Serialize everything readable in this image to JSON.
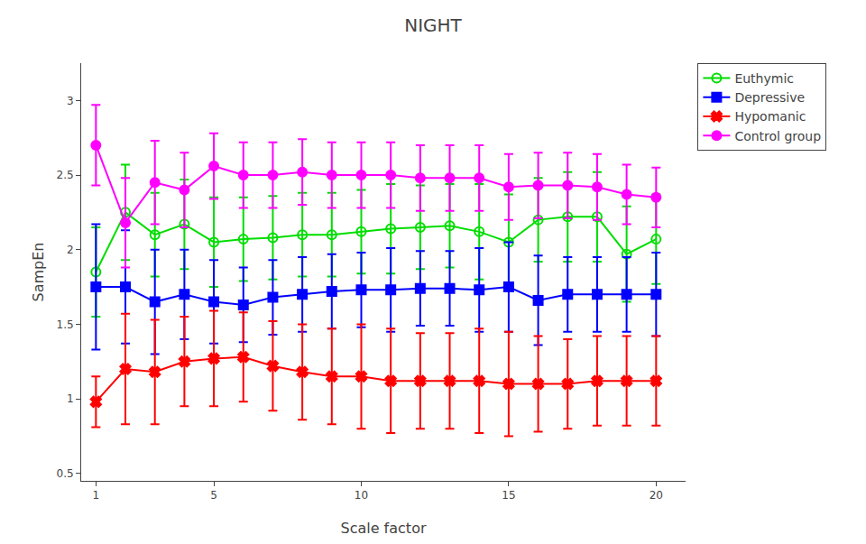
{
  "chart_data": {
    "type": "line",
    "title": "NIGHT",
    "xlabel": "Scale factor",
    "ylabel": "SampEn",
    "x": [
      1,
      2,
      3,
      4,
      5,
      6,
      7,
      8,
      9,
      10,
      11,
      12,
      13,
      14,
      15,
      16,
      17,
      18,
      19,
      20
    ],
    "xlim": [
      0.5,
      21
    ],
    "ylim": [
      0.45,
      3.25
    ],
    "xticks": [
      1,
      5,
      10,
      15,
      20
    ],
    "yticks": [
      0.5,
      1.0,
      1.5,
      2.0,
      2.5,
      3.0
    ],
    "grid": false,
    "legend": "upper right",
    "series": [
      {
        "name": "Euthymic",
        "color": "#00dd00",
        "marker": "circle-open",
        "values": [
          1.85,
          2.25,
          2.1,
          2.17,
          2.05,
          2.07,
          2.08,
          2.1,
          2.1,
          2.12,
          2.14,
          2.15,
          2.16,
          2.12,
          2.05,
          2.2,
          2.22,
          2.22,
          1.97,
          2.07
        ],
        "errors": [
          0.3,
          0.32,
          0.28,
          0.3,
          0.3,
          0.28,
          0.28,
          0.28,
          0.28,
          0.28,
          0.3,
          0.28,
          0.28,
          0.32,
          0.32,
          0.28,
          0.3,
          0.3,
          0.32,
          0.3
        ]
      },
      {
        "name": "Depressive",
        "color": "#0000ff",
        "marker": "square",
        "values": [
          1.75,
          1.75,
          1.65,
          1.7,
          1.65,
          1.63,
          1.68,
          1.7,
          1.72,
          1.73,
          1.73,
          1.74,
          1.74,
          1.73,
          1.75,
          1.66,
          1.7,
          1.7,
          1.7,
          1.7
        ],
        "errors": [
          0.42,
          0.38,
          0.35,
          0.3,
          0.28,
          0.25,
          0.25,
          0.25,
          0.25,
          0.25,
          0.28,
          0.25,
          0.25,
          0.28,
          0.3,
          0.3,
          0.25,
          0.25,
          0.25,
          0.28
        ]
      },
      {
        "name": "Hypomanic",
        "color": "#ff0000",
        "marker": "x",
        "values": [
          0.98,
          1.2,
          1.18,
          1.25,
          1.27,
          1.28,
          1.22,
          1.18,
          1.15,
          1.15,
          1.12,
          1.12,
          1.12,
          1.12,
          1.1,
          1.1,
          1.1,
          1.12,
          1.12,
          1.12
        ],
        "errors": [
          0.17,
          0.37,
          0.35,
          0.3,
          0.32,
          0.3,
          0.3,
          0.32,
          0.32,
          0.35,
          0.35,
          0.32,
          0.32,
          0.35,
          0.35,
          0.32,
          0.3,
          0.3,
          0.3,
          0.3
        ]
      },
      {
        "name": "Control group",
        "color": "#ff00ff",
        "marker": "circle",
        "values": [
          2.7,
          2.18,
          2.45,
          2.4,
          2.56,
          2.5,
          2.5,
          2.52,
          2.5,
          2.5,
          2.5,
          2.48,
          2.48,
          2.48,
          2.42,
          2.43,
          2.43,
          2.42,
          2.37,
          2.35
        ],
        "errors": [
          0.27,
          0.3,
          0.28,
          0.25,
          0.22,
          0.22,
          0.22,
          0.22,
          0.22,
          0.22,
          0.22,
          0.22,
          0.22,
          0.22,
          0.22,
          0.22,
          0.22,
          0.22,
          0.2,
          0.2
        ]
      }
    ]
  }
}
